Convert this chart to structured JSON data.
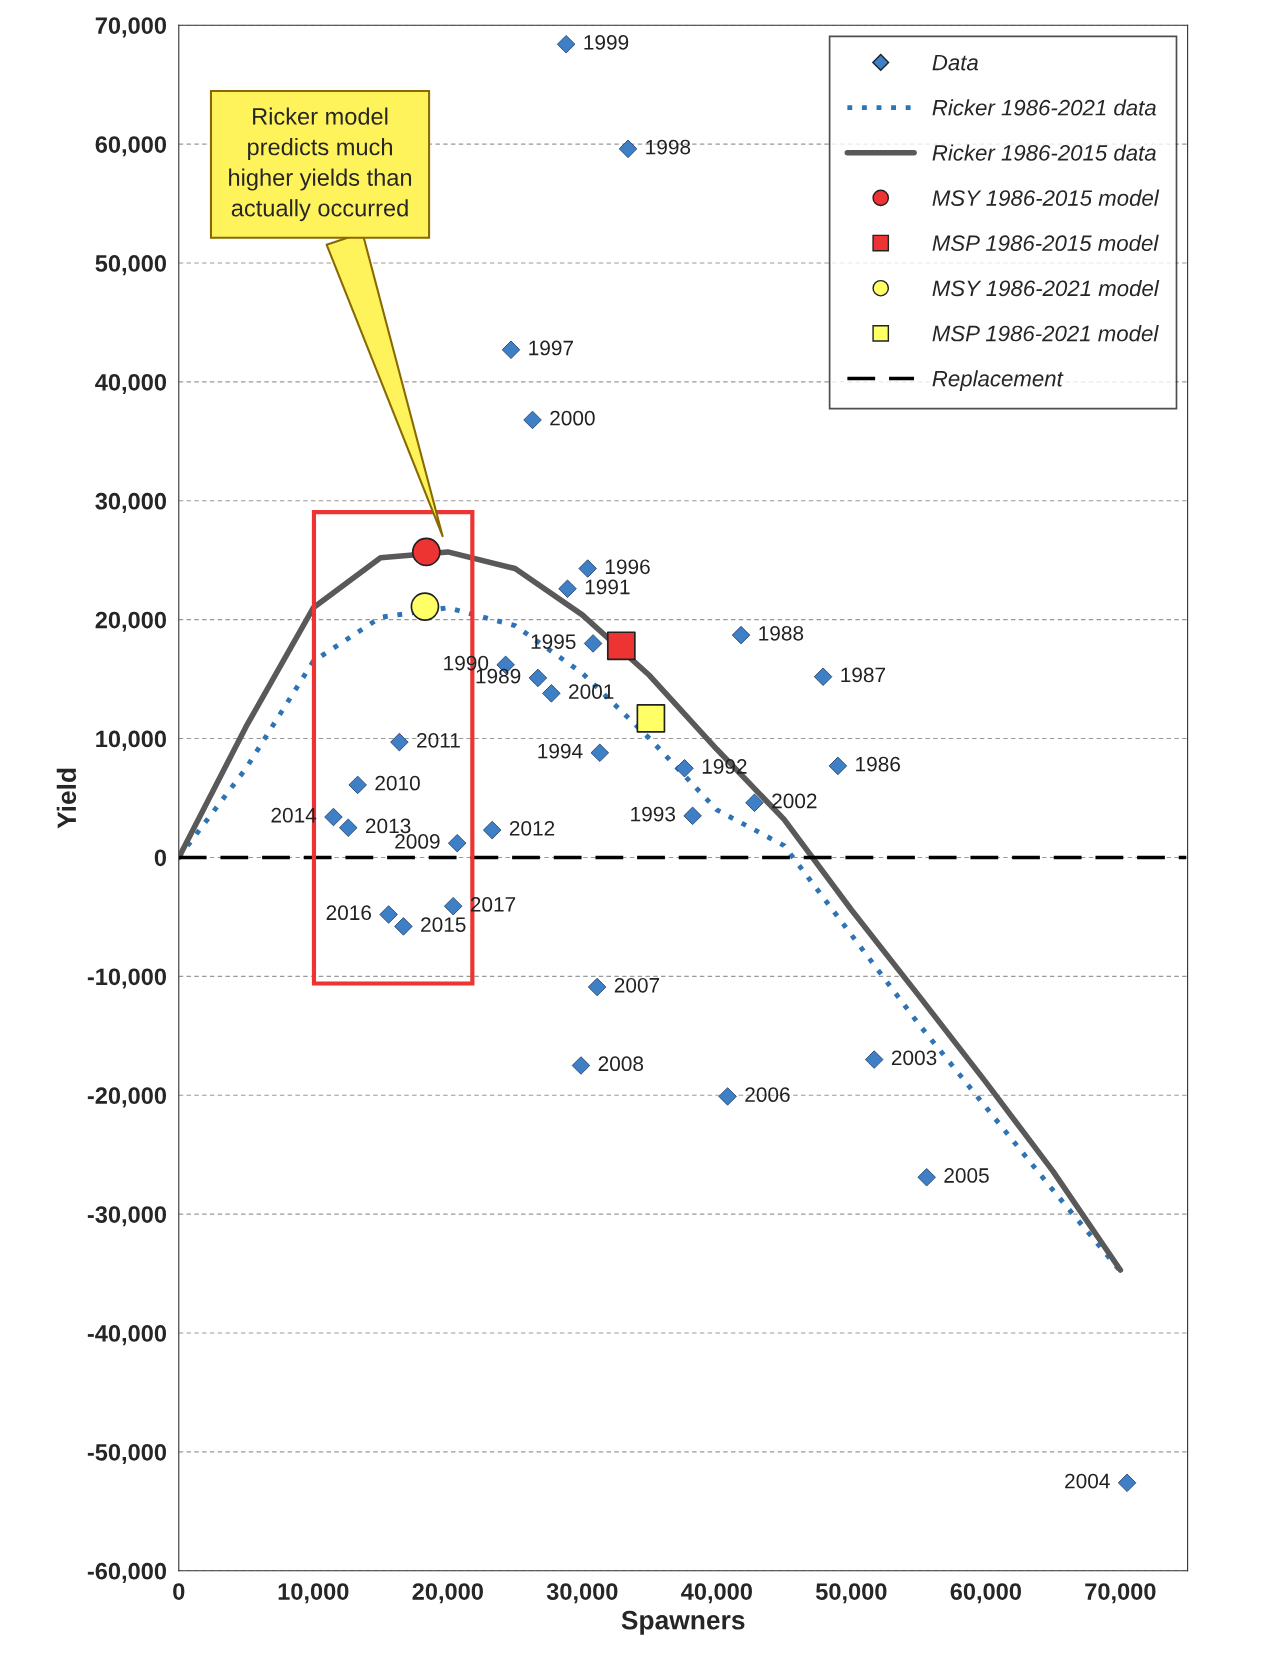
{
  "chart_data": {
    "type": "scatter",
    "xlabel": "Spawners",
    "ylabel": "Yield",
    "xlim": [
      0,
      75000
    ],
    "ylim": [
      -60000,
      70000
    ],
    "xticks": [
      {
        "value": 0,
        "label": "0"
      },
      {
        "value": 10000,
        "label": "10,000"
      },
      {
        "value": 20000,
        "label": "20,000"
      },
      {
        "value": 30000,
        "label": "30,000"
      },
      {
        "value": 40000,
        "label": "40,000"
      },
      {
        "value": 50000,
        "label": "50,000"
      },
      {
        "value": 60000,
        "label": "60,000"
      },
      {
        "value": 70000,
        "label": "70,000"
      }
    ],
    "yticks": [
      {
        "value": -60000,
        "label": "-60,000"
      },
      {
        "value": -50000,
        "label": "-50,000"
      },
      {
        "value": -40000,
        "label": "-40,000"
      },
      {
        "value": -30000,
        "label": "-30,000"
      },
      {
        "value": -20000,
        "label": "-20,000"
      },
      {
        "value": -10000,
        "label": "-10,000"
      },
      {
        "value": 0,
        "label": "0"
      },
      {
        "value": 10000,
        "label": "10,000"
      },
      {
        "value": 20000,
        "label": "20,000"
      },
      {
        "value": 30000,
        "label": "30,000"
      },
      {
        "value": 40000,
        "label": "40,000"
      },
      {
        "value": 50000,
        "label": "50,000"
      },
      {
        "value": 60000,
        "label": "60,000"
      },
      {
        "value": 70000,
        "label": "70,000"
      }
    ],
    "grid": "y",
    "legend": "top right",
    "series": [
      {
        "name": "Data",
        "marker": "diamond",
        "color": "#3f7fc6",
        "x": [
          28800,
          33400,
          24700,
          26300,
          30400,
          28900,
          41800,
          47900,
          30800,
          24300,
          26700,
          27700,
          31300,
          37600,
          49000,
          16400,
          13300,
          11500,
          12600,
          20700,
          23300,
          38200,
          42800,
          15600,
          16700,
          20400,
          31100,
          29900,
          40800,
          51700,
          55600,
          70500
        ],
        "values": [
          68400,
          59600,
          42700,
          36800,
          24300,
          22600,
          18700,
          15200,
          18000,
          16200,
          15100,
          13800,
          8800,
          7500,
          7700,
          9700,
          6100,
          3400,
          2500,
          1200,
          2300,
          3500,
          4600,
          -4800,
          -5800,
          -4100,
          -10900,
          -17500,
          -20100,
          -17000,
          -26900,
          -52600
        ]
      },
      {
        "name": "Ricker 1986-2021 data",
        "type": "line",
        "line_style": "dotted",
        "color": "#2e74b5",
        "x": [
          0,
          5000,
          10000,
          15000,
          20000,
          25000,
          30000,
          35000,
          40000,
          45000,
          50000,
          55000,
          60000,
          65000,
          70000
        ],
        "values": [
          0,
          7500,
          16500,
          20200,
          21000,
          19500,
          15500,
          10000,
          4000,
          1000,
          -6500,
          -14000,
          -21000,
          -28000,
          -34800
        ]
      },
      {
        "name": "Ricker 1986-2015 data",
        "type": "line",
        "line_style": "solid",
        "color": "#595959",
        "x": [
          0,
          5000,
          10000,
          15000,
          20000,
          25000,
          30000,
          35000,
          40000,
          45000,
          50000,
          55000,
          60000,
          65000,
          70000
        ],
        "values": [
          0,
          11000,
          21000,
          25200,
          25700,
          24300,
          20400,
          15300,
          9100,
          3200,
          -4400,
          -11600,
          -18900,
          -26400,
          -34700
        ]
      },
      {
        "name": "MSY 1986-2015 model",
        "type": "scatter",
        "marker": "circle",
        "color": "#ee3333",
        "x": [
          18400
        ],
        "values": [
          25700
        ]
      },
      {
        "name": "MSP 1986-2015 model",
        "type": "scatter",
        "marker": "square",
        "color": "#ee3333",
        "x": [
          32900
        ],
        "values": [
          17800
        ]
      },
      {
        "name": "MSY 1986-2021 model",
        "type": "scatter",
        "marker": "circle",
        "color": "#ffff66",
        "x": [
          18300
        ],
        "values": [
          21100
        ]
      },
      {
        "name": "MSP 1986-2021 model",
        "type": "scatter",
        "marker": "square",
        "color": "#ffff66",
        "x": [
          35100
        ],
        "values": [
          11700
        ]
      },
      {
        "name": "Replacement",
        "type": "line",
        "line_style": "dashed",
        "color": "#000000",
        "x": [
          0,
          74900
        ],
        "values": [
          0,
          0
        ]
      }
    ],
    "annotations": [
      {
        "text": "1999",
        "x": 28800,
        "y": 68400
      },
      {
        "text": "1998",
        "x": 33400,
        "y": 59600
      },
      {
        "text": "1997",
        "x": 24700,
        "y": 42700
      },
      {
        "text": "2000",
        "x": 26300,
        "y": 36800
      },
      {
        "text": "1996",
        "x": 30400,
        "y": 24300
      },
      {
        "text": "1991",
        "x": 28900,
        "y": 22600
      },
      {
        "text": "1988",
        "x": 41800,
        "y": 18700
      },
      {
        "text": "1987",
        "x": 47900,
        "y": 15200
      },
      {
        "text": "1995",
        "x": 30800,
        "y": 18000
      },
      {
        "text": "1990",
        "x": 24300,
        "y": 16200
      },
      {
        "text": "1989",
        "x": 26700,
        "y": 15100
      },
      {
        "text": "2001",
        "x": 27700,
        "y": 13800
      },
      {
        "text": "1994",
        "x": 31300,
        "y": 8800
      },
      {
        "text": "1992",
        "x": 37600,
        "y": 7500
      },
      {
        "text": "1986",
        "x": 49000,
        "y": 7700
      },
      {
        "text": "2011",
        "x": 16400,
        "y": 9700
      },
      {
        "text": "2010",
        "x": 13300,
        "y": 6100
      },
      {
        "text": "2014",
        "x": 11500,
        "y": 3400
      },
      {
        "text": "2013",
        "x": 12600,
        "y": 2500
      },
      {
        "text": "2009",
        "x": 20700,
        "y": 1200
      },
      {
        "text": "2012",
        "x": 23300,
        "y": 2300
      },
      {
        "text": "1993",
        "x": 38200,
        "y": 3500
      },
      {
        "text": "2002",
        "x": 42800,
        "y": 4600
      },
      {
        "text": "2016",
        "x": 15600,
        "y": -4800
      },
      {
        "text": "2015",
        "x": 16700,
        "y": -5800
      },
      {
        "text": "2017",
        "x": 20400,
        "y": -4100
      },
      {
        "text": "2007",
        "x": 31100,
        "y": -10900
      },
      {
        "text": "2008",
        "x": 29900,
        "y": -17500
      },
      {
        "text": "2006",
        "x": 40800,
        "y": -20100
      },
      {
        "text": "2003",
        "x": 51700,
        "y": -17000
      },
      {
        "text": "2005",
        "x": 55600,
        "y": -26900
      },
      {
        "text": "2004",
        "x": 70500,
        "y": -52600
      },
      "Ricker model\npredicts much\nhigher yields than\nactually occurred"
    ]
  }
}
